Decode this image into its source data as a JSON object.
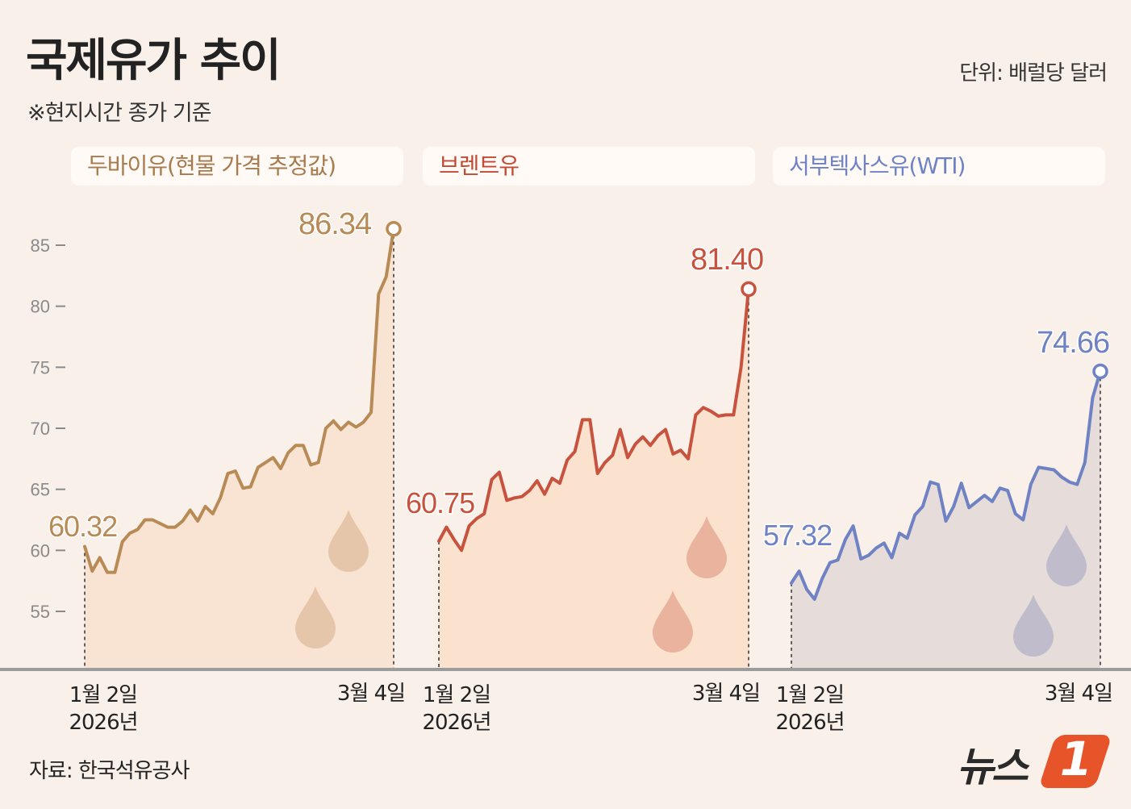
{
  "title": "국제유가 추이",
  "subtitle": "※현지시간 종가 기준",
  "unit": "단위: 배럴당 달러",
  "source": "자료: 한국석유공사",
  "logo": {
    "text": "뉴스",
    "mark": "1"
  },
  "colors": {
    "dubai": "#b88a55",
    "dubai_fill": "#f9e4d3",
    "dubai_drop": "#e6c6aa",
    "brent": "#c7533e",
    "brent_fill": "#fae2cf",
    "brent_drop": "#eab39e",
    "wti": "#6f82c3",
    "wti_fill": "#e6dcda",
    "wti_drop": "#c0bccb",
    "axis": "#8a8a8a",
    "baseline": "#999999"
  },
  "chart_data": [
    {
      "type": "line",
      "name": "두바이유(현물 가격 추정값)",
      "key": "dubai",
      "y_ticks": [
        55,
        60,
        65,
        70,
        75,
        80,
        85
      ],
      "ylim": [
        50,
        87
      ],
      "start_label": "60.32",
      "end_label": "86.34",
      "x_start_label": "1월 2일",
      "x_start_year": "2026년",
      "x_end_label": "3월 4일",
      "values": [
        60.32,
        58.3,
        59.4,
        58.2,
        58.2,
        60.7,
        61.4,
        61.7,
        62.5,
        62.5,
        62.2,
        61.9,
        61.9,
        62.4,
        63.3,
        62.4,
        63.6,
        63.0,
        64.3,
        66.3,
        66.5,
        65.1,
        65.2,
        66.8,
        67.2,
        67.6,
        66.7,
        68.0,
        68.6,
        68.6,
        67.0,
        67.2,
        70.0,
        70.6,
        69.9,
        70.5,
        70.1,
        70.5,
        71.3,
        81.0,
        82.4,
        86.34
      ]
    },
    {
      "type": "line",
      "name": "브렌트유",
      "key": "brent",
      "ylim": [
        50,
        87
      ],
      "start_label": "60.75",
      "end_label": "81.40",
      "x_start_label": "1월 2일",
      "x_start_year": "2026년",
      "x_end_label": "3월 4일",
      "values": [
        60.75,
        61.9,
        60.9,
        60.0,
        62.0,
        62.6,
        63.0,
        65.8,
        66.4,
        64.1,
        64.3,
        64.4,
        64.9,
        65.7,
        64.6,
        65.9,
        65.5,
        67.4,
        68.1,
        70.7,
        70.7,
        66.3,
        67.2,
        67.8,
        69.9,
        67.6,
        68.7,
        69.3,
        68.6,
        69.4,
        69.9,
        67.9,
        68.2,
        67.5,
        71.1,
        71.7,
        71.4,
        71.0,
        71.1,
        71.1,
        75.0,
        81.4
      ]
    },
    {
      "type": "line",
      "name": "서부텍사스유(WTI)",
      "key": "wti",
      "ylim": [
        50,
        87
      ],
      "start_label": "57.32",
      "end_label": "74.66",
      "x_start_label": "1월 2일",
      "x_start_year": "2026년",
      "x_end_label": "3월 4일",
      "values": [
        57.32,
        58.3,
        56.8,
        56.0,
        57.7,
        59.0,
        59.2,
        60.9,
        62.0,
        59.3,
        59.6,
        60.2,
        60.6,
        59.4,
        61.4,
        61.0,
        62.9,
        63.6,
        65.6,
        65.4,
        62.4,
        63.6,
        65.5,
        63.5,
        64.0,
        64.5,
        64.0,
        65.1,
        64.9,
        63.0,
        62.5,
        65.4,
        66.8,
        66.7,
        66.6,
        66.0,
        65.6,
        65.4,
        67.2,
        72.5,
        74.66
      ]
    }
  ]
}
